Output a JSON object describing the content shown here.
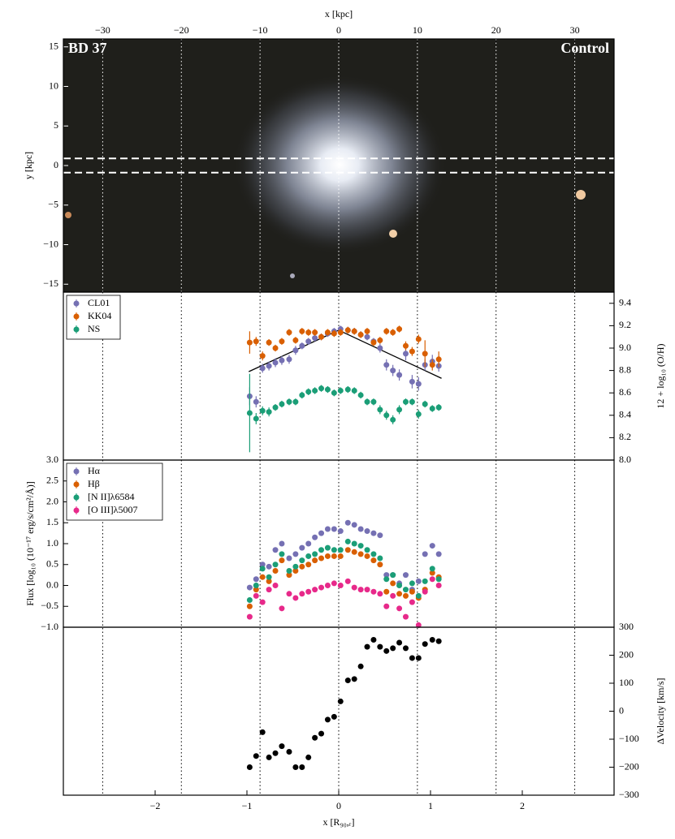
{
  "chart_data": [
    {
      "type": "image",
      "labels": [
        "BD 37",
        "Control"
      ],
      "xlabel": "x [kpc]",
      "ylabel": "y [kpc]",
      "xlim": [
        -35,
        35
      ],
      "xticks": [
        {
          "value": -30,
          "label": "−30"
        },
        {
          "value": -20,
          "label": "−20"
        },
        {
          "value": -10,
          "label": "−10"
        },
        0,
        10,
        20,
        30
      ],
      "ylim": [
        -16,
        16
      ],
      "yticks": [
        {
          "value": -15,
          "label": "−15"
        },
        {
          "value": -10,
          "label": "−10"
        },
        {
          "value": -5,
          "label": "−5"
        },
        0,
        5,
        10,
        15
      ],
      "slit": [
        -0.9,
        0.9
      ]
    },
    {
      "type": "scatter",
      "ylabel": "12 + log₁₀ (O/H)",
      "yaxis": "right",
      "legend": "upper left",
      "ylim": [
        8.0,
        9.5
      ],
      "yticks": [
        {
          "value": 8.0,
          "label": "8.0"
        },
        8.2,
        8.4,
        8.6,
        8.8,
        {
          "value": 9.0,
          "label": "9.0"
        },
        9.2,
        9.4
      ],
      "x": [
        -0.97,
        -0.9,
        -0.83,
        -0.76,
        -0.69,
        -0.62,
        -0.54,
        -0.47,
        -0.4,
        -0.33,
        -0.26,
        -0.19,
        -0.12,
        -0.05,
        0.02,
        0.1,
        0.17,
        0.24,
        0.31,
        0.38,
        0.45,
        0.52,
        0.59,
        0.66,
        0.73,
        0.8,
        0.87,
        0.94,
        1.02,
        1.09
      ],
      "series": [
        {
          "name": "CL01",
          "color": "#7570b3",
          "values": [
            8.57,
            8.52,
            8.82,
            8.84,
            8.87,
            8.89,
            8.9,
            8.98,
            9.02,
            9.06,
            9.09,
            9.1,
            9.13,
            9.15,
            9.17,
            9.16,
            9.15,
            9.12,
            9.1,
            9.06,
            9.0,
            8.85,
            8.8,
            8.76,
            8.95,
            8.7,
            8.68,
            8.85,
            8.88,
            8.84
          ],
          "errors": [
            0.08,
            0.05,
            0.04,
            0.04,
            0.04,
            0.04,
            0.04,
            0.04,
            0.03,
            0.03,
            0.03,
            0.03,
            0.03,
            0.03,
            0.03,
            0.03,
            0.03,
            0.03,
            0.03,
            0.03,
            0.04,
            0.05,
            0.05,
            0.05,
            0.06,
            0.06,
            0.06,
            0.05,
            0.06,
            0.05
          ]
        },
        {
          "name": "KK04",
          "color": "#d95f02",
          "values": [
            9.05,
            9.06,
            8.93,
            9.05,
            9.0,
            9.06,
            9.14,
            9.07,
            9.15,
            9.14,
            9.14,
            9.1,
            9.14,
            9.13,
            9.14,
            9.16,
            9.15,
            9.12,
            9.15,
            9.05,
            9.07,
            9.15,
            9.14,
            9.17,
            9.02,
            8.97,
            9.08,
            8.95,
            8.85,
            8.9
          ],
          "errors": [
            0.1,
            0.04,
            0.04,
            0.03,
            0.03,
            0.03,
            0.03,
            0.03,
            0.03,
            0.03,
            0.03,
            0.03,
            0.03,
            0.03,
            0.03,
            0.03,
            0.03,
            0.03,
            0.03,
            0.03,
            0.03,
            0.03,
            0.03,
            0.03,
            0.04,
            0.04,
            0.04,
            0.12,
            0.05,
            0.07
          ]
        },
        {
          "name": "NS",
          "color": "#1b9e77",
          "values": [
            8.42,
            8.37,
            8.44,
            8.43,
            8.47,
            8.5,
            8.52,
            8.52,
            8.58,
            8.61,
            8.62,
            8.64,
            8.63,
            8.6,
            8.62,
            8.63,
            8.62,
            8.58,
            8.52,
            8.52,
            8.45,
            8.4,
            8.36,
            8.45,
            8.52,
            8.52,
            8.41,
            8.5,
            8.46,
            8.47
          ],
          "errors": [
            0.35,
            0.05,
            0.04,
            0.04,
            0.03,
            0.03,
            0.03,
            0.03,
            0.03,
            0.03,
            0.03,
            0.03,
            0.03,
            0.03,
            0.03,
            0.03,
            0.03,
            0.03,
            0.03,
            0.03,
            0.04,
            0.04,
            0.04,
            0.04,
            0.03,
            0.03,
            0.04,
            0.03,
            0.03,
            0.03
          ]
        }
      ],
      "fit": {
        "x": [
          -0.98,
          0,
          1.12
        ],
        "values": [
          8.79,
          9.16,
          8.73
        ],
        "color": "#000000"
      }
    },
    {
      "type": "scatter",
      "ylabel": "Flux [log₁₀ (10⁻¹⁷ erg/s/cm²/Å)]",
      "yaxis": "left",
      "legend": "upper left",
      "ylim": [
        -1,
        3
      ],
      "yticks": [
        {
          "value": -1,
          "label": "−1.0"
        },
        {
          "value": -0.5,
          "label": "−0.5"
        },
        {
          "value": 0,
          "label": "0.0"
        },
        0.5,
        {
          "value": 1,
          "label": "1.0"
        },
        1.5,
        {
          "value": 2,
          "label": "2.0"
        },
        2.5,
        {
          "value": 3,
          "label": "3.0"
        }
      ],
      "x": [
        -0.97,
        -0.9,
        -0.83,
        -0.76,
        -0.69,
        -0.62,
        -0.54,
        -0.47,
        -0.4,
        -0.33,
        -0.26,
        -0.19,
        -0.12,
        -0.05,
        0.02,
        0.1,
        0.17,
        0.24,
        0.31,
        0.38,
        0.45,
        0.52,
        0.59,
        0.66,
        0.73,
        0.8,
        0.87,
        0.94,
        1.02,
        1.09
      ],
      "series": [
        {
          "name": "Hα",
          "color": "#7570b3",
          "values": [
            -0.05,
            0.15,
            0.5,
            0.45,
            0.85,
            1.0,
            0.65,
            0.75,
            0.9,
            1.0,
            1.15,
            1.25,
            1.35,
            1.35,
            1.3,
            1.5,
            1.45,
            1.35,
            1.3,
            1.25,
            1.2,
            0.25,
            0.25,
            0.05,
            0.25,
            -0.1,
            0.1,
            0.75,
            0.95,
            0.75
          ]
        },
        {
          "name": "Hβ",
          "color": "#d95f02",
          "values": [
            -0.5,
            -0.1,
            0.2,
            0.1,
            0.35,
            0.6,
            0.25,
            0.35,
            0.45,
            0.5,
            0.6,
            0.65,
            0.7,
            0.7,
            0.7,
            0.85,
            0.8,
            0.75,
            0.7,
            0.6,
            0.5,
            -0.15,
            0.05,
            -0.2,
            -0.25,
            -0.15,
            -0.3,
            -0.1,
            0.3,
            0.2
          ]
        },
        {
          "name": "[N II]λ6584",
          "color": "#1b9e77",
          "values": [
            -0.35,
            0.0,
            0.4,
            0.2,
            0.5,
            0.75,
            0.35,
            0.45,
            0.6,
            0.7,
            0.75,
            0.85,
            0.9,
            0.85,
            0.85,
            1.05,
            1.0,
            0.95,
            0.85,
            0.75,
            0.65,
            0.15,
            0.25,
            0.0,
            -0.1,
            0.05,
            -0.25,
            0.1,
            0.4,
            0.15
          ]
        },
        {
          "name": "[O III]λ5007",
          "color": "#e7298a",
          "values": [
            -0.75,
            -0.25,
            -0.4,
            -0.1,
            0.0,
            -0.55,
            -0.2,
            -0.3,
            -0.2,
            -0.15,
            -0.1,
            -0.05,
            0.0,
            0.05,
            0.0,
            0.1,
            -0.05,
            -0.1,
            -0.1,
            -0.15,
            -0.2,
            -0.5,
            -0.25,
            -0.55,
            -0.75,
            -0.4,
            -0.95,
            -0.15,
            0.15,
            0.0
          ]
        }
      ]
    },
    {
      "type": "scatter",
      "ylabel": "ΔVelocity [km/s]",
      "yaxis": "right",
      "xlabel": "x [R₉₀,ᵣ]",
      "xlim": [
        -3,
        3
      ],
      "xticks": [
        {
          "value": -2,
          "label": "−2"
        },
        {
          "value": -1,
          "label": "−1"
        },
        0,
        1,
        2
      ],
      "ylim": [
        -300,
        300
      ],
      "yticks": [
        {
          "value": -300,
          "label": "−300"
        },
        {
          "value": -200,
          "label": "−200"
        },
        {
          "value": -100,
          "label": "−100"
        },
        0,
        100,
        200,
        300
      ],
      "x": [
        -0.97,
        -0.9,
        -0.83,
        -0.76,
        -0.69,
        -0.62,
        -0.54,
        -0.47,
        -0.4,
        -0.33,
        -0.26,
        -0.19,
        -0.12,
        -0.05,
        0.02,
        0.1,
        0.17,
        0.24,
        0.31,
        0.38,
        0.45,
        0.52,
        0.59,
        0.66,
        0.73,
        0.8,
        0.87,
        0.94,
        1.02,
        1.09
      ],
      "series": [
        {
          "color": "#000000",
          "values": [
            -200,
            -160,
            -75,
            -165,
            -150,
            -125,
            -145,
            -200,
            -200,
            -165,
            -95,
            -80,
            -30,
            -20,
            35,
            110,
            115,
            160,
            230,
            255,
            230,
            215,
            225,
            245,
            225,
            190,
            190,
            240,
            255,
            250
          ]
        }
      ]
    }
  ]
}
